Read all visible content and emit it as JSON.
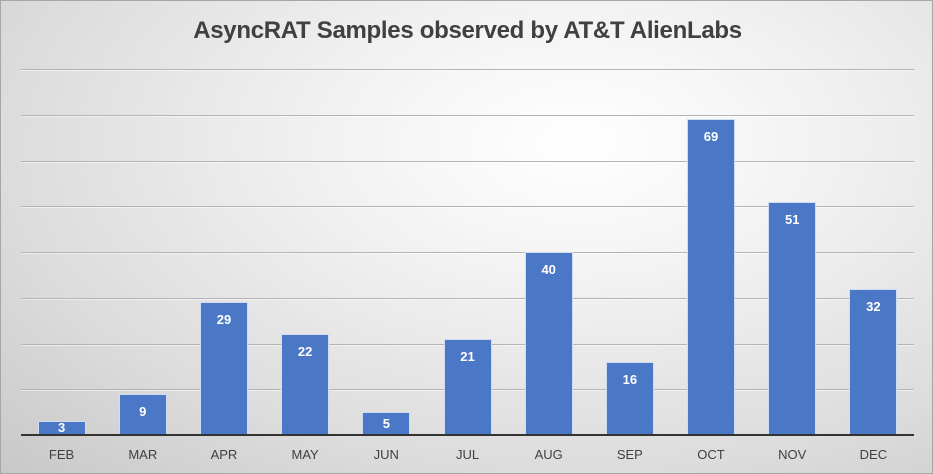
{
  "chart_data": {
    "type": "bar",
    "title": "AsyncRAT Samples observed by AT&T AlienLabs",
    "categories": [
      "FEB",
      "MAR",
      "APR",
      "MAY",
      "JUN",
      "JUL",
      "AUG",
      "SEP",
      "OCT",
      "NOV",
      "DEC"
    ],
    "values": [
      3,
      9,
      29,
      22,
      5,
      21,
      40,
      16,
      69,
      51,
      32
    ],
    "xlabel": "",
    "ylabel": "",
    "ylim": [
      0,
      80
    ],
    "grid": true,
    "gridline_step": 10,
    "y_tick_labels_visible": false,
    "data_labels": true,
    "legend": "none",
    "bar_color": "#4a77c6",
    "label_color": "#ffffff"
  }
}
